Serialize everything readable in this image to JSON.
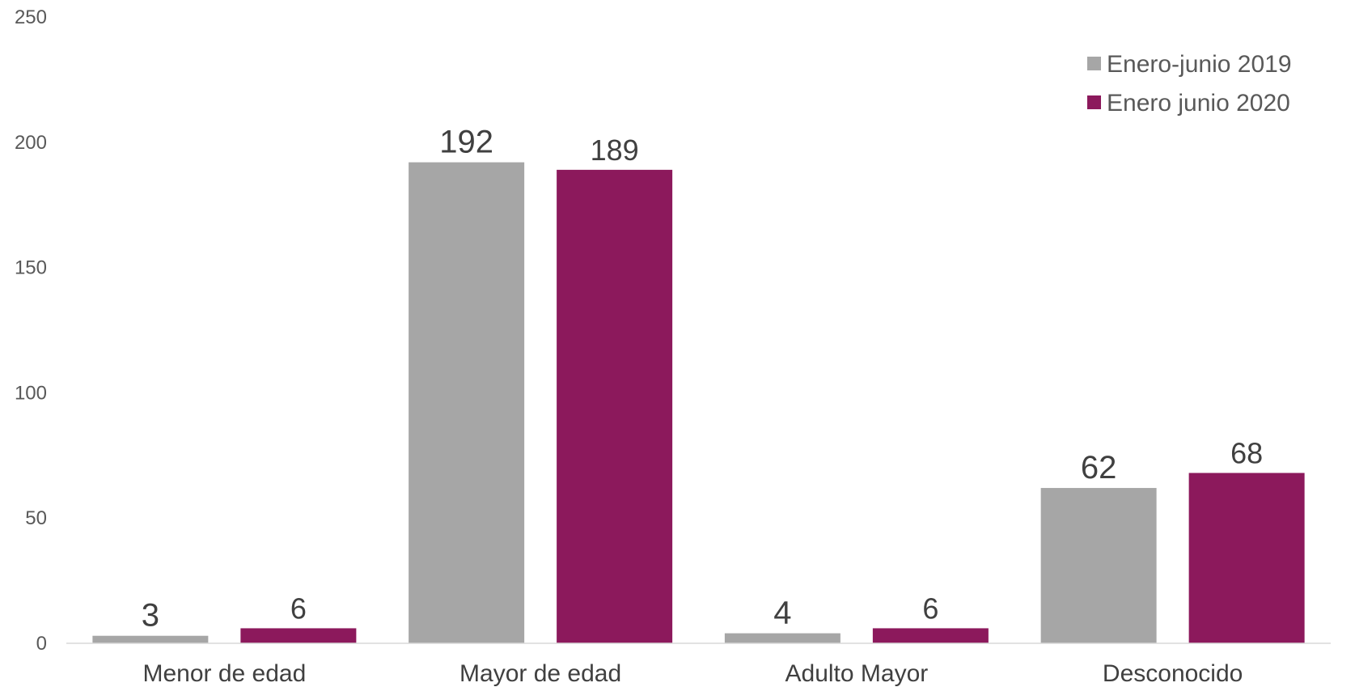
{
  "chart_data": {
    "type": "bar",
    "categories": [
      "Menor de edad",
      "Mayor de edad",
      "Adulto Mayor",
      "Desconocido"
    ],
    "series": [
      {
        "name": "Enero-junio 2019",
        "color": "#a6a6a6",
        "values": [
          3,
          192,
          4,
          62
        ]
      },
      {
        "name": "Enero junio 2020",
        "color": "#8c195c",
        "values": [
          6,
          189,
          6,
          68
        ]
      }
    ],
    "y_ticks": [
      "0",
      "50",
      "100",
      "150",
      "200",
      "250"
    ],
    "ylim": [
      0,
      250
    ],
    "grid": false,
    "legend_position": "top-right",
    "data_labels": true
  }
}
